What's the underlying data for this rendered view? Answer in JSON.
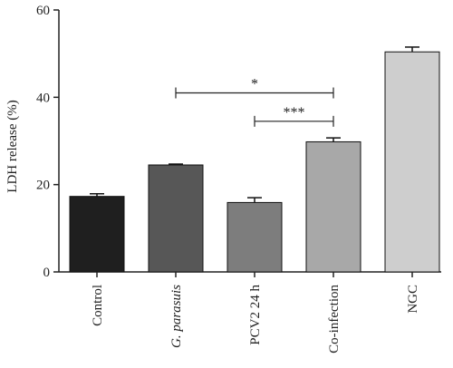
{
  "chart_data": {
    "type": "bar",
    "ylabel": "LDH release (%)",
    "ylim": [
      0,
      60
    ],
    "yticks": [
      0,
      20,
      40,
      60
    ],
    "categories": [
      "Control",
      "G. parasuis",
      "PCV2 24 h",
      "Co-infection",
      "NGC"
    ],
    "italic_categories": [
      false,
      true,
      false,
      false,
      false
    ],
    "values": [
      17.3,
      24.5,
      15.9,
      29.8,
      50.4
    ],
    "errors": [
      0.6,
      0.2,
      1.1,
      0.9,
      1.1
    ],
    "bar_colors": [
      "#1f1f1f",
      "#575757",
      "#7d7d7d",
      "#a8a8a8",
      "#cecece"
    ],
    "significance": [
      {
        "from": 1,
        "to": 3,
        "y": 41,
        "label": "*"
      },
      {
        "from": 2,
        "to": 3,
        "y": 34.5,
        "label": "***"
      }
    ]
  }
}
